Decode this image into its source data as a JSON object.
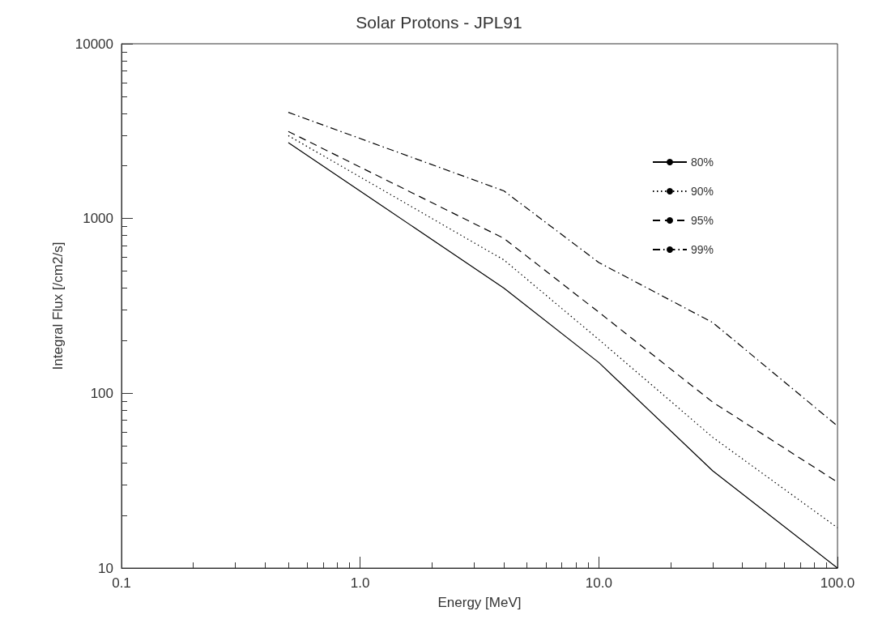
{
  "chart_data": {
    "type": "line",
    "title": "Solar Protons - JPL91",
    "xlabel": "Energy [MeV]",
    "ylabel": "Integral Flux [/cm2/s]",
    "x": [
      0.5,
      4,
      10,
      30,
      100
    ],
    "series": [
      {
        "name": "80%",
        "color": "#000000",
        "line_style": "solid",
        "values": [
          2720,
          400,
          150,
          36,
          10
        ]
      },
      {
        "name": "90%",
        "color": "#000000",
        "line_style": "dotted",
        "values": [
          2980,
          580,
          203,
          56,
          17
        ]
      },
      {
        "name": "95%",
        "color": "#000000",
        "line_style": "dashed",
        "values": [
          3150,
          770,
          291,
          89,
          31
        ]
      },
      {
        "name": "99%",
        "color": "#000000",
        "line_style": "dashdot",
        "values": [
          4050,
          1440,
          560,
          254,
          65
        ]
      }
    ],
    "log": "xy",
    "xlim": [
      0.1,
      100
    ],
    "ylim": [
      10,
      10000
    ],
    "xticks": [
      0.1,
      {
        "value": 1,
        "label": "1.0"
      },
      {
        "value": 10,
        "label": "10.0"
      },
      {
        "value": 100,
        "label": "100.0"
      }
    ],
    "yticks": [
      10,
      100,
      1000,
      10000
    ],
    "grid": false,
    "legend": "top right",
    "marker": "none"
  }
}
